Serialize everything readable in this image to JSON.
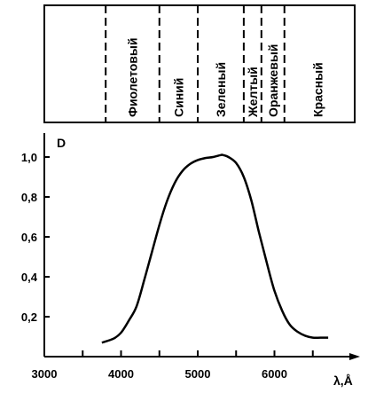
{
  "chart_data": {
    "type": "line",
    "ylabel": "D",
    "xlabel": "λ,Å",
    "xlim": [
      3000,
      7000
    ],
    "ylim": [
      0,
      1.12
    ],
    "x_ticks": [
      3000,
      4000,
      5000,
      6000
    ],
    "y_ticks": [
      0.2,
      0.4,
      0.6,
      0.8,
      1.0
    ],
    "y_tick_labels": [
      "0,2",
      "0,4",
      "0,6",
      "0,8",
      "1,0"
    ],
    "grid": false,
    "bands": [
      {
        "label": "Фиолетовый",
        "from": 3800,
        "to": 4500
      },
      {
        "label": "Синий",
        "from": 4500,
        "to": 5000
      },
      {
        "label": "Зеленый",
        "from": 5000,
        "to": 5600
      },
      {
        "label": "Желтый",
        "from": 5600,
        "to": 5830
      },
      {
        "label": "Оранжевый",
        "from": 5830,
        "to": 6130
      },
      {
        "label": "Красный",
        "from": 6130,
        "to": 7000
      }
    ],
    "series": [
      {
        "x": [
          3750,
          3900,
          4000,
          4100,
          4200,
          4300,
          4400,
          4500,
          4600,
          4700,
          4800,
          4900,
          5000,
          5100,
          5200,
          5300,
          5330,
          5400,
          5500,
          5600,
          5700,
          5800,
          5900,
          6000,
          6100,
          6200,
          6300,
          6400,
          6500,
          6600,
          6700
        ],
        "y": [
          0.07,
          0.09,
          0.12,
          0.18,
          0.25,
          0.38,
          0.52,
          0.66,
          0.78,
          0.87,
          0.93,
          0.965,
          0.985,
          0.995,
          1.0,
          1.01,
          1.01,
          1.0,
          0.97,
          0.9,
          0.78,
          0.62,
          0.47,
          0.33,
          0.23,
          0.16,
          0.125,
          0.105,
          0.095,
          0.095,
          0.095
        ]
      }
    ]
  }
}
